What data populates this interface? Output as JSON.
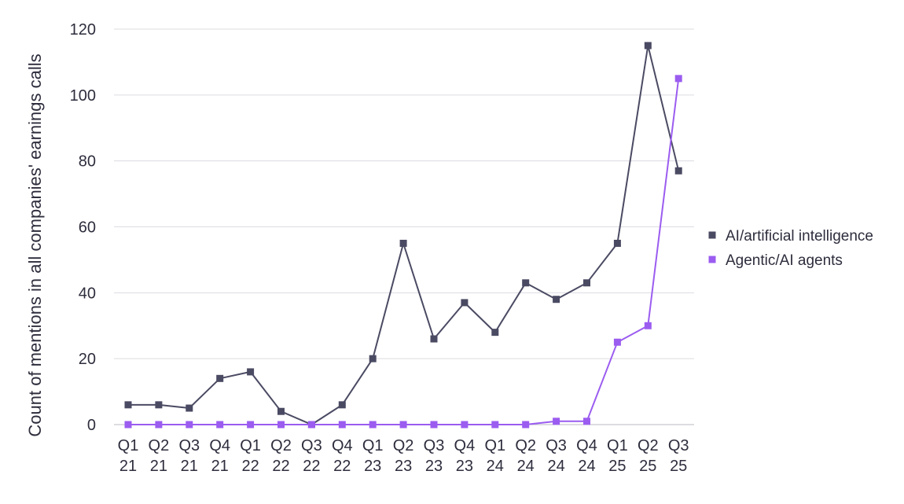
{
  "chart_data": {
    "type": "line",
    "title": "",
    "xlabel": "",
    "ylabel": "Count of mentions in all companies' earnings calls",
    "categories": [
      [
        "Q1",
        "21"
      ],
      [
        "Q2",
        "21"
      ],
      [
        "Q3",
        "21"
      ],
      [
        "Q4",
        "21"
      ],
      [
        "Q1",
        "22"
      ],
      [
        "Q2",
        "22"
      ],
      [
        "Q3",
        "22"
      ],
      [
        "Q4",
        "22"
      ],
      [
        "Q1",
        "23"
      ],
      [
        "Q2",
        "23"
      ],
      [
        "Q3",
        "23"
      ],
      [
        "Q4",
        "23"
      ],
      [
        "Q1",
        "24"
      ],
      [
        "Q2",
        "24"
      ],
      [
        "Q3",
        "24"
      ],
      [
        "Q4",
        "24"
      ],
      [
        "Q1",
        "25"
      ],
      [
        "Q2",
        "25"
      ],
      [
        "Q3",
        "25"
      ]
    ],
    "ylim": [
      0,
      120
    ],
    "yticks": [
      0,
      20,
      40,
      60,
      80,
      100,
      120
    ],
    "grid": true,
    "legend_position": "right",
    "series": [
      {
        "name": "AI/artificial intelligence",
        "color": "#4a4a63",
        "values": [
          6,
          6,
          5,
          14,
          16,
          4,
          0,
          6,
          20,
          55,
          26,
          37,
          28,
          43,
          38,
          43,
          55,
          115,
          77
        ]
      },
      {
        "name": "Agentic/AI agents",
        "color": "#9b5cf0",
        "values": [
          0,
          0,
          0,
          0,
          0,
          0,
          0,
          0,
          0,
          0,
          0,
          0,
          0,
          0,
          1,
          1,
          25,
          30,
          105
        ]
      }
    ]
  }
}
